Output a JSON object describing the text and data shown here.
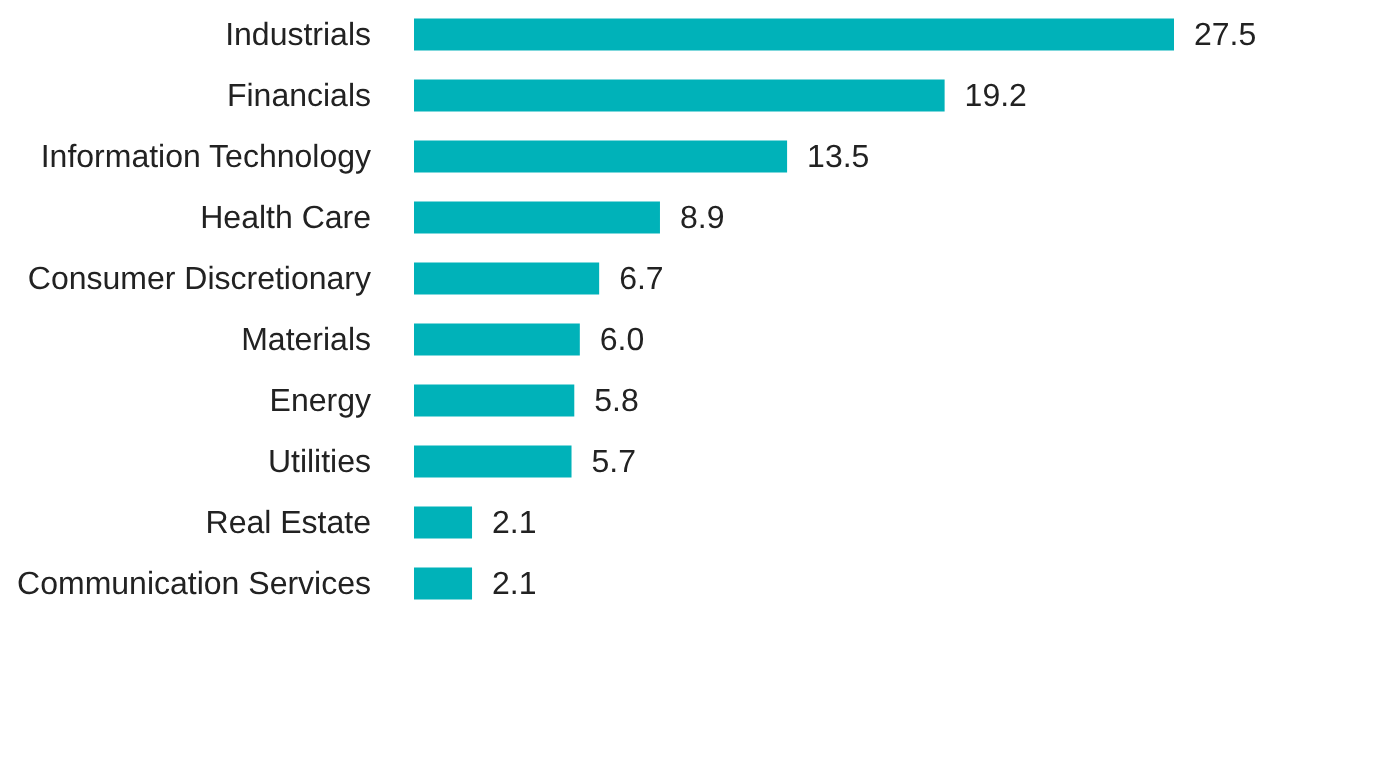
{
  "chart_data": {
    "type": "bar",
    "orientation": "horizontal",
    "categories": [
      "Industrials",
      "Financials",
      "Information Technology",
      "Health Care",
      "Consumer Discretionary",
      "Materials",
      "Energy",
      "Utilities",
      "Real Estate",
      "Communication Services"
    ],
    "values": [
      27.5,
      19.2,
      13.5,
      8.9,
      6.7,
      6.0,
      5.8,
      5.7,
      2.1,
      2.1
    ],
    "value_labels": [
      "27.5",
      "19.2",
      "13.5",
      "8.9",
      "6.7",
      "6.0",
      "5.8",
      "5.7",
      "2.1",
      "2.1"
    ],
    "color": "#00b2b9"
  }
}
